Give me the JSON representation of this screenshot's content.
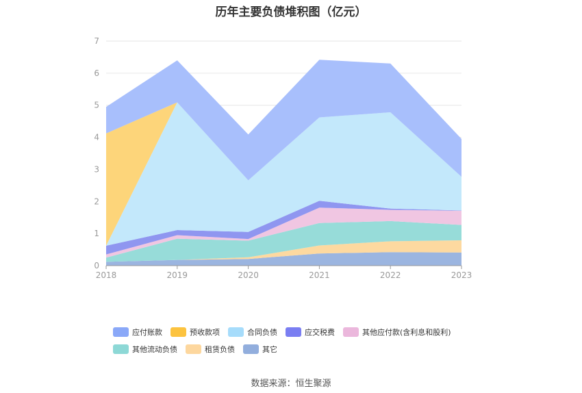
{
  "chart_data": {
    "type": "area",
    "stacked": true,
    "title": "历年主要负债堆积图（亿元）",
    "categories": [
      "2018",
      "2019",
      "2020",
      "2021",
      "2022",
      "2023"
    ],
    "ylim": [
      0,
      7
    ],
    "yticks": [
      "0",
      "1",
      "2",
      "3",
      "4",
      "5",
      "6",
      "7"
    ],
    "grid": true,
    "legend_position": "bottom",
    "series": [
      {
        "name": "其它",
        "color": "#9bb5e0",
        "values": [
          0.12,
          0.18,
          0.21,
          0.38,
          0.42,
          0.41
        ]
      },
      {
        "name": "租赁负债",
        "color": "#fdd9a0",
        "values": [
          0.0,
          0.0,
          0.05,
          0.25,
          0.34,
          0.38
        ]
      },
      {
        "name": "其他流动负债",
        "color": "#97dcd9",
        "values": [
          0.13,
          0.66,
          0.52,
          0.7,
          0.63,
          0.48
        ]
      },
      {
        "name": "其他应付款(含利息和股利)",
        "color": "#f0c6e2",
        "values": [
          0.1,
          0.11,
          0.05,
          0.48,
          0.35,
          0.44
        ]
      },
      {
        "name": "应交税费",
        "color": "#8f96f0",
        "values": [
          0.27,
          0.16,
          0.22,
          0.21,
          0.04,
          0.01
        ]
      },
      {
        "name": "合同负债",
        "color": "#c3e8fb",
        "values": [
          0.0,
          3.98,
          1.61,
          2.6,
          3.0,
          1.05
        ]
      },
      {
        "name": "预收款项",
        "color": "#fdd57a",
        "values": [
          3.5,
          0.0,
          0.0,
          0.0,
          0.0,
          0.0
        ]
      },
      {
        "name": "应付账款",
        "color": "#a8bffc",
        "values": [
          0.83,
          1.31,
          1.43,
          1.8,
          1.52,
          1.18
        ]
      }
    ]
  },
  "legend": {
    "row1": [
      {
        "label": "应付账款",
        "color": "#8aa8f8"
      },
      {
        "label": "预收款项",
        "color": "#fcc33f"
      },
      {
        "label": "合同负债",
        "color": "#a6dcfb"
      },
      {
        "label": "应交税费",
        "color": "#7a7ef2"
      },
      {
        "label": "其他应付款(含利息和股利)",
        "color": "#ebb7dc"
      }
    ],
    "row2": [
      {
        "label": "其他流动负债",
        "color": "#8dd8d6"
      },
      {
        "label": "租赁负债",
        "color": "#fdd79e"
      },
      {
        "label": "其它",
        "color": "#92aedd"
      }
    ]
  },
  "source": "数据来源：恒生聚源"
}
